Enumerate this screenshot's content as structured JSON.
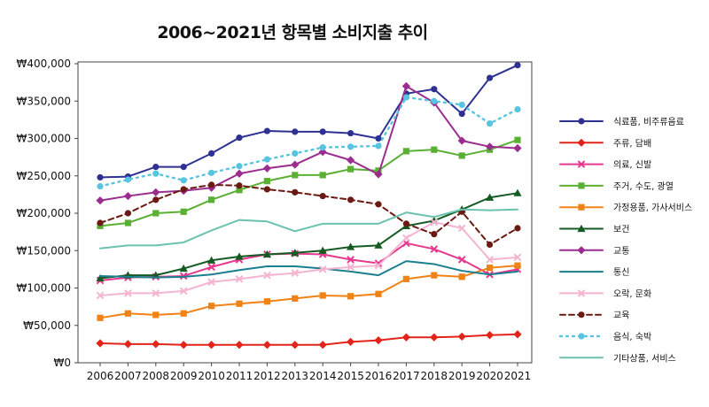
{
  "chart_data": {
    "type": "line",
    "title": "2006~2021년 항목별 소비지출 추이",
    "xlabel": "",
    "ylabel": "",
    "ylim": [
      0,
      400000
    ],
    "y_ticks": [
      "₩0",
      "₩50,000",
      "₩100,000",
      "₩150,000",
      "₩200,000",
      "₩250,000",
      "₩300,000",
      "₩350,000",
      "₩400,000"
    ],
    "grid": false,
    "legend_position": "right",
    "categories": [
      "2006",
      "2007",
      "2008",
      "2009",
      "2010",
      "2011",
      "2012",
      "2013",
      "2014",
      "2015",
      "2016",
      "2017",
      "2018",
      "2019",
      "2020",
      "2021"
    ],
    "series": [
      {
        "name": "식료품, 비주류음료",
        "color": "#2e3192",
        "marker": "circle",
        "dash": "solid",
        "values": [
          248000,
          249000,
          262000,
          262000,
          280000,
          301000,
          310000,
          309000,
          309000,
          307000,
          300000,
          360000,
          366000,
          333000,
          381000,
          398000
        ]
      },
      {
        "name": "주류, 담배",
        "color": "#e2241b",
        "marker": "diamond",
        "dash": "solid",
        "values": [
          26000,
          25000,
          25000,
          24000,
          24000,
          24000,
          24000,
          24000,
          24000,
          28000,
          30000,
          34000,
          34000,
          35000,
          37000,
          38000
        ]
      },
      {
        "name": "의료, 신발",
        "color": "#e6398e",
        "marker": "x",
        "dash": "solid",
        "values": [
          110000,
          114000,
          115000,
          116000,
          128000,
          138000,
          145000,
          146000,
          145000,
          138000,
          133000,
          160000,
          152000,
          138000,
          118000,
          125000
        ]
      },
      {
        "name": "주거, 수도, 광열",
        "color": "#5ab033",
        "marker": "square",
        "dash": "solid",
        "values": [
          183000,
          187000,
          200000,
          202000,
          218000,
          231000,
          243000,
          251000,
          251000,
          259000,
          257000,
          283000,
          285000,
          277000,
          285000,
          298000
        ]
      },
      {
        "name": "가정용품, 가사서비스",
        "color": "#f08216",
        "marker": "square",
        "dash": "solid",
        "values": [
          60000,
          66000,
          64000,
          66000,
          76000,
          79000,
          82000,
          86000,
          90000,
          89000,
          92000,
          112000,
          117000,
          115000,
          127000,
          130000
        ]
      },
      {
        "name": "보건",
        "color": "#145a23",
        "marker": "triangle",
        "dash": "solid",
        "values": [
          113000,
          117000,
          117000,
          126000,
          137000,
          142000,
          145000,
          147000,
          150000,
          155000,
          157000,
          183000,
          190000,
          205000,
          221000,
          227000
        ]
      },
      {
        "name": "교통",
        "color": "#9b2d8f",
        "marker": "diamond",
        "dash": "solid",
        "values": [
          217000,
          223000,
          228000,
          230000,
          234000,
          253000,
          260000,
          265000,
          282000,
          271000,
          252000,
          370000,
          348000,
          297000,
          289000,
          287000
        ]
      },
      {
        "name": "통신",
        "color": "#1a7f8f",
        "marker": "none",
        "dash": "solid",
        "values": [
          116000,
          115000,
          114000,
          115000,
          118000,
          124000,
          129000,
          129000,
          126000,
          122000,
          117000,
          136000,
          132000,
          123000,
          118000,
          122000
        ]
      },
      {
        "name": "오락, 문화",
        "color": "#f4b4d2",
        "marker": "x",
        "dash": "solid",
        "values": [
          90000,
          93000,
          93000,
          96000,
          108000,
          112000,
          117000,
          120000,
          125000,
          128000,
          130000,
          167000,
          188000,
          180000,
          138000,
          141000
        ]
      },
      {
        "name": "교육",
        "color": "#6a1a12",
        "marker": "circle",
        "dash": "dashed",
        "values": [
          187000,
          200000,
          218000,
          232000,
          238000,
          237000,
          232000,
          228000,
          223000,
          218000,
          212000,
          186000,
          172000,
          202000,
          158000,
          180000
        ]
      },
      {
        "name": "음식, 숙박",
        "color": "#58c4e0",
        "marker": "circle",
        "dash": "dotted",
        "values": [
          236000,
          245000,
          253000,
          244000,
          254000,
          263000,
          272000,
          280000,
          288000,
          289000,
          290000,
          355000,
          350000,
          345000,
          320000,
          339000
        ]
      },
      {
        "name": "기타상품, 서비스",
        "color": "#6bc2b0",
        "marker": "none",
        "dash": "solid",
        "values": [
          153000,
          157000,
          157000,
          161000,
          177000,
          191000,
          189000,
          176000,
          186000,
          186000,
          186000,
          201000,
          195000,
          205000,
          204000,
          205000
        ]
      }
    ]
  }
}
